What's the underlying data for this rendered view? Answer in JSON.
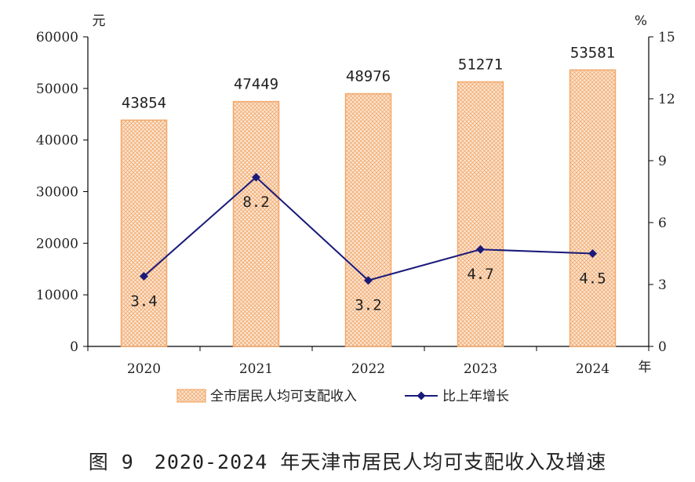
{
  "chart_data": {
    "type": "bar",
    "categories": [
      "2020",
      "2021",
      "2022",
      "2023",
      "2024"
    ],
    "series": [
      {
        "name": "全市居民人均可支配收入",
        "type": "bar",
        "axis": "left",
        "values": [
          43854,
          47449,
          48976,
          51271,
          53581
        ],
        "labels": [
          "43854",
          "47449",
          "48976",
          "51271",
          "53581"
        ]
      },
      {
        "name": "比上年增长",
        "type": "line",
        "axis": "right",
        "values": [
          3.4,
          8.2,
          3.2,
          4.7,
          4.5
        ],
        "labels": [
          "3.4",
          "8.2",
          "3.2",
          "4.7",
          "4.5"
        ]
      }
    ],
    "y_left": {
      "unit": "元",
      "ylim": [
        0,
        60000
      ],
      "ticks": [
        "0",
        "10000",
        "20000",
        "30000",
        "40000",
        "50000",
        "60000"
      ]
    },
    "y_right": {
      "unit": "%",
      "ylim": [
        0,
        15
      ],
      "ticks": [
        "0",
        "3",
        "6",
        "9",
        "12",
        "15"
      ]
    },
    "x_unit": "年",
    "legend_position": "bottom",
    "grid": false,
    "colors": {
      "bar_fill": "#fbe6d4",
      "bar_stroke": "#f2a96c",
      "line": "#1a1a7a"
    }
  },
  "caption": "图 9　2020-2024 年天津市居民人均可支配收入及增速"
}
